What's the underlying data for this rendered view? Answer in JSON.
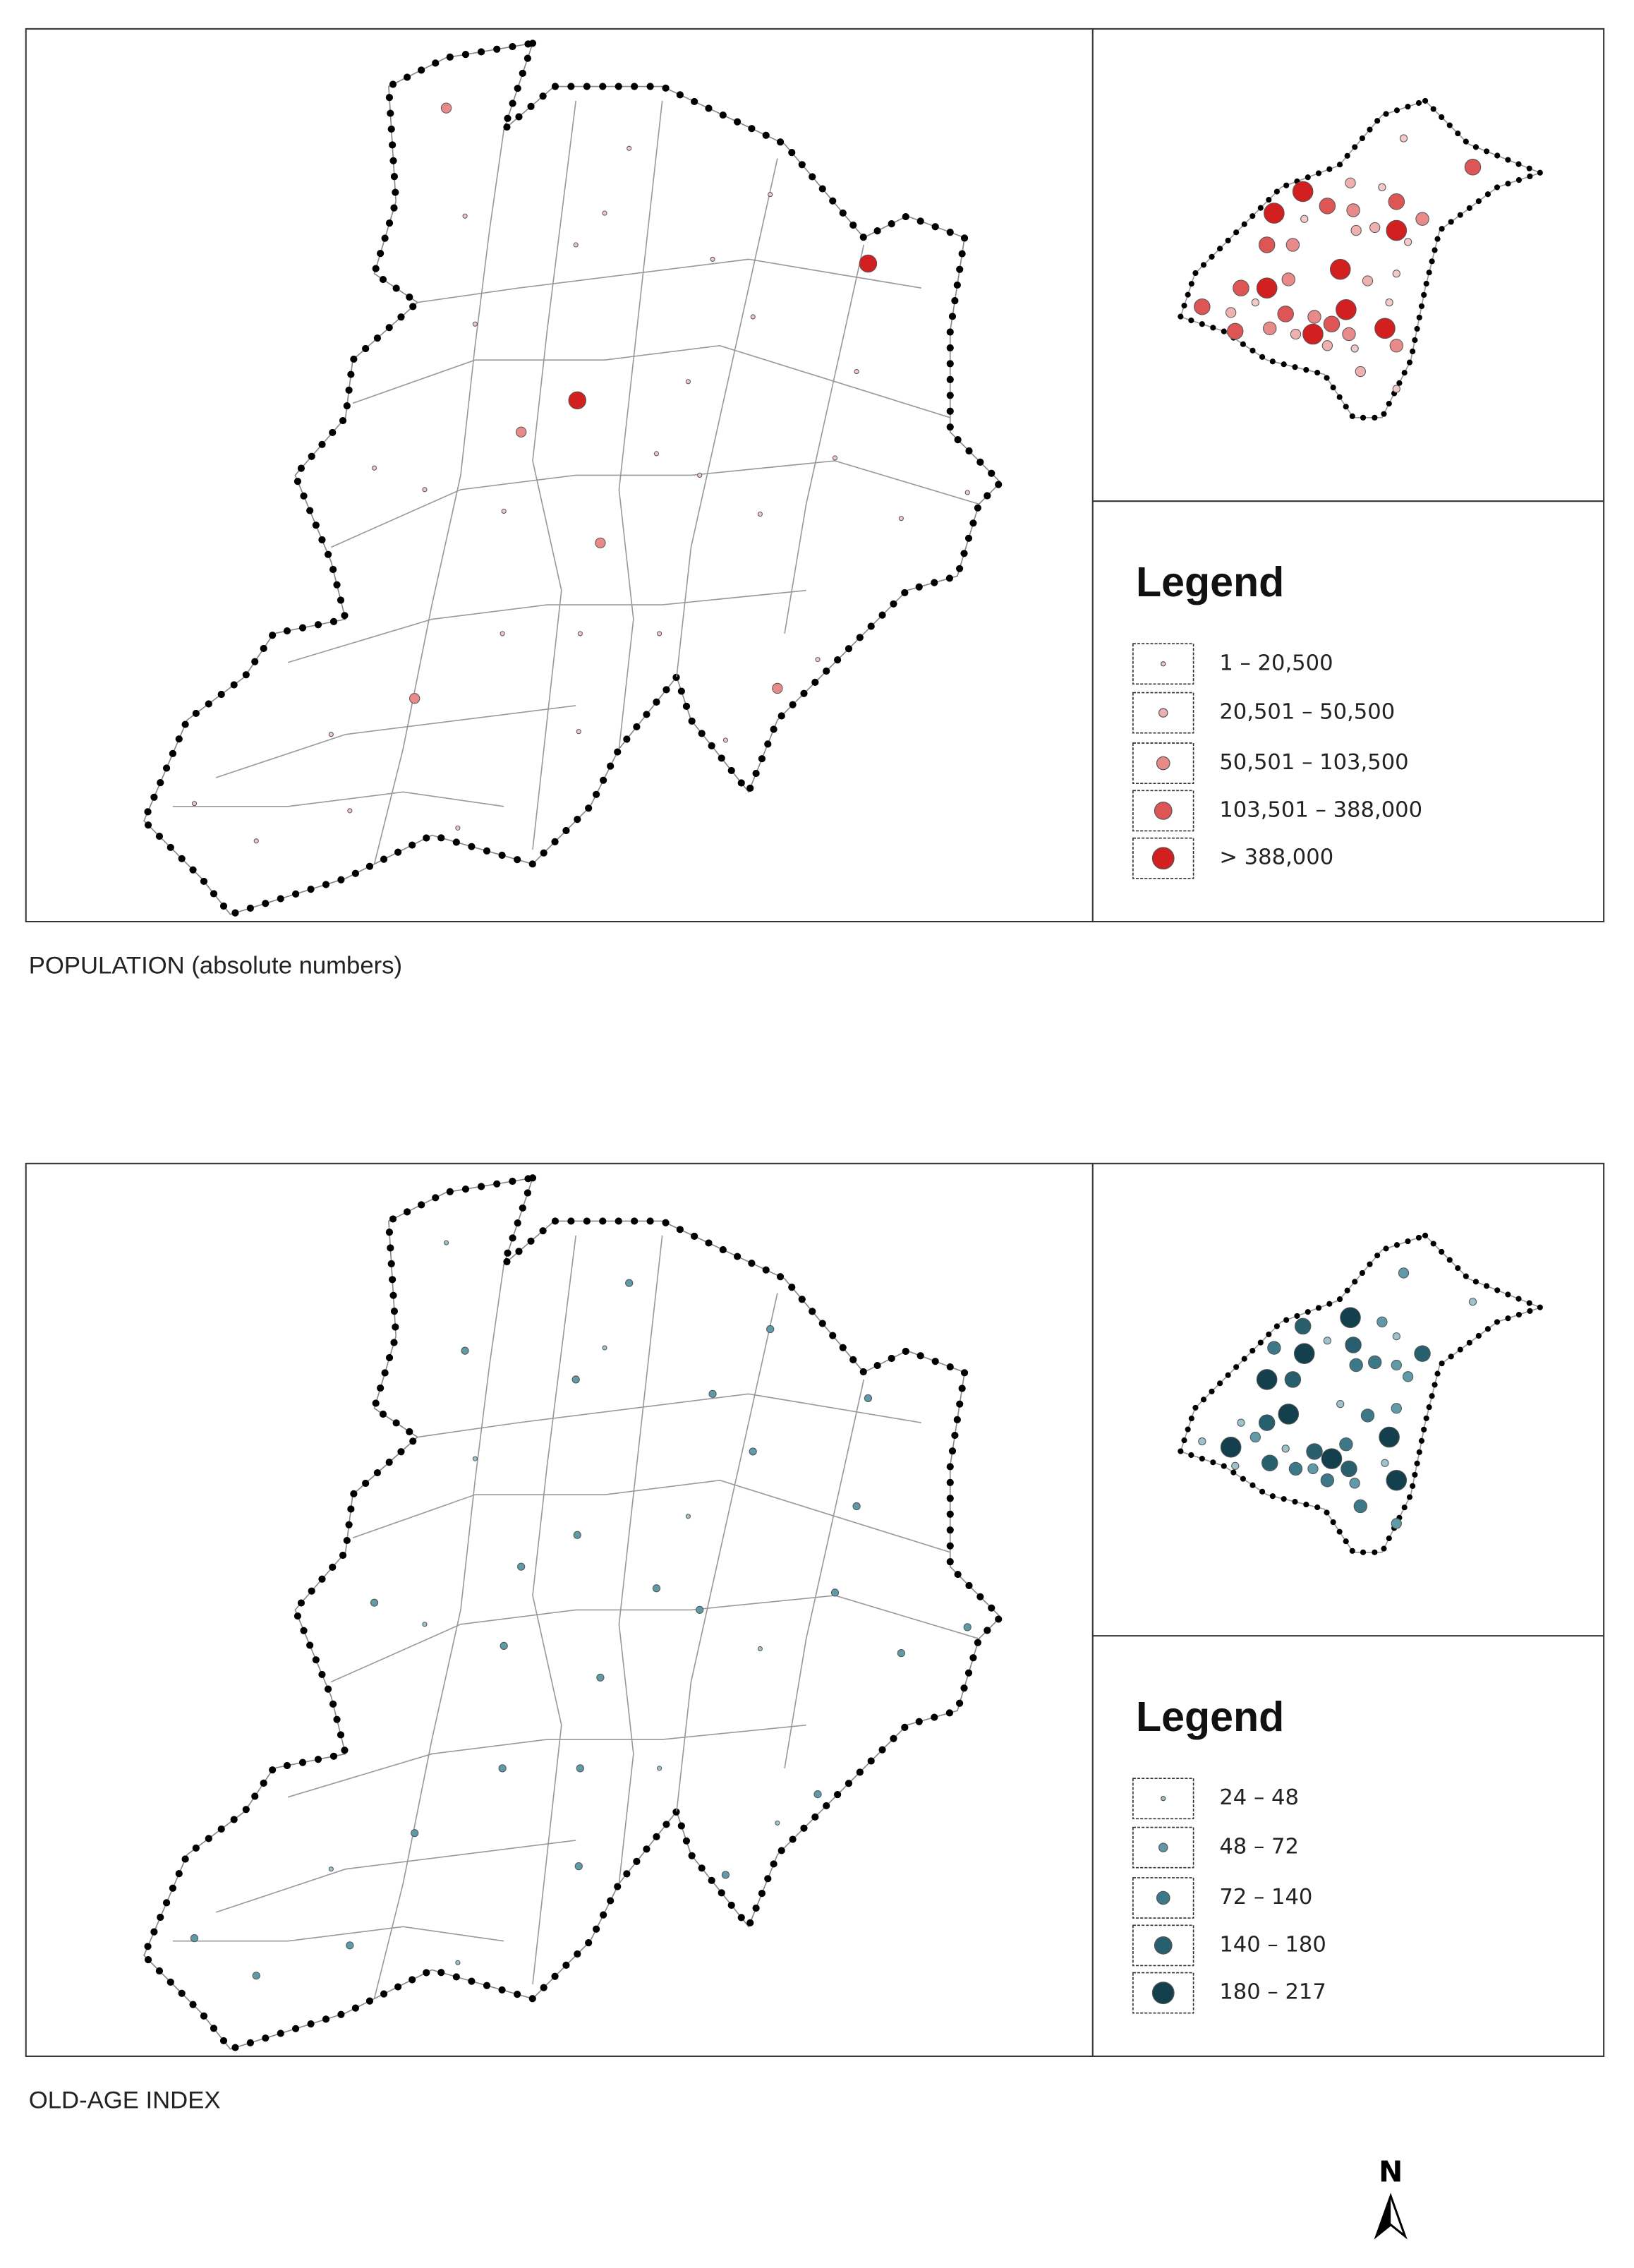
{
  "panels": [
    {
      "caption": "POPULATION (absolute numbers)",
      "legend": {
        "title": "Legend",
        "items": [
          {
            "label": "1 – 20,500",
            "color": "#f3c9c9"
          },
          {
            "label": "20,501 – 50,500",
            "color": "#efb0b0"
          },
          {
            "label": "50,501 – 103,500",
            "color": "#e88a8a"
          },
          {
            "label": "103,501 – 388,000",
            "color": "#dd5555"
          },
          {
            "label": "> 388,000",
            "color": "#d21f1f"
          }
        ]
      }
    },
    {
      "caption": "OLD-AGE INDEX",
      "legend": {
        "title": "Legend",
        "items": [
          {
            "label": "24 – 48",
            "color": "#9cc2cc"
          },
          {
            "label": "48 – 72",
            "color": "#5e9aa8"
          },
          {
            "label": "72 – 140",
            "color": "#3c7888"
          },
          {
            "label": "140 – 180",
            "color": "#285f6e"
          },
          {
            "label": "180 – 217",
            "color": "#143f4d"
          }
        ]
      }
    }
  ],
  "north_arrow": "N"
}
